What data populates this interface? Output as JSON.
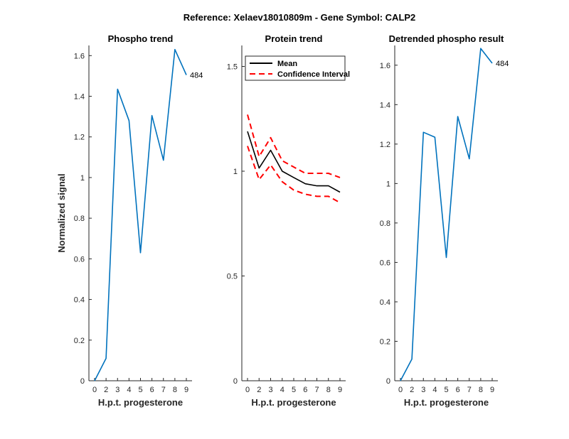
{
  "figure": {
    "title": "Reference:  Xelaev18010809m - Gene Symbol:  CALP2"
  },
  "chart_data": [
    {
      "type": "line",
      "title": "Phospho trend",
      "xlabel": "H.p.t. progesterone",
      "ylabel": "Normalized signal",
      "x_ticks": [
        "0",
        "2",
        "3",
        "4",
        "5",
        "6",
        "7",
        "8",
        "9"
      ],
      "ylim": [
        0,
        1.65
      ],
      "y_ticks": [
        0,
        0.2,
        0.4,
        0.6,
        0.8,
        1,
        1.2,
        1.4,
        1.6
      ],
      "y_tick_labels": [
        "0",
        "0.2",
        "0.4",
        "0.6",
        "0.8",
        "1",
        "1.2",
        "1.4",
        "1.6"
      ],
      "series": [
        {
          "color": "#0072BD",
          "style": "solid",
          "values": [
            0.0,
            0.11,
            1.435,
            1.28,
            0.63,
            1.305,
            1.085,
            1.63,
            1.505
          ],
          "end_label": "484"
        }
      ],
      "grid": false
    },
    {
      "type": "line",
      "title": "Protein trend",
      "xlabel": "H.p.t. progesterone",
      "ylabel": "",
      "x_ticks": [
        "0",
        "2",
        "3",
        "4",
        "5",
        "6",
        "7",
        "8",
        "9"
      ],
      "ylim": [
        0,
        1.6
      ],
      "y_ticks": [
        0,
        0.5,
        1,
        1.5
      ],
      "y_tick_labels": [
        "0",
        "0.5",
        "1",
        "1.5"
      ],
      "legend": {
        "placement": "top-left",
        "entries": [
          "Mean",
          "Confidence Interval"
        ]
      },
      "series": [
        {
          "name": "Mean",
          "color": "#000000",
          "style": "solid",
          "values": [
            1.19,
            1.015,
            1.1,
            1.0,
            0.97,
            0.94,
            0.93,
            0.93,
            0.9
          ]
        },
        {
          "name": "Confidence Interval",
          "color": "#FF0000",
          "style": "dashed",
          "values": [
            1.27,
            1.07,
            1.16,
            1.05,
            1.02,
            0.99,
            0.99,
            0.99,
            0.97
          ]
        },
        {
          "name": "Confidence Interval",
          "color": "#FF0000",
          "style": "dashed",
          "values": [
            1.12,
            0.96,
            1.03,
            0.95,
            0.91,
            0.89,
            0.88,
            0.88,
            0.85
          ]
        }
      ],
      "grid": false
    },
    {
      "type": "line",
      "title": "Detrended phospho result",
      "xlabel": "H.p.t. progesterone",
      "ylabel": "",
      "x_ticks": [
        "0",
        "2",
        "3",
        "4",
        "5",
        "6",
        "7",
        "8",
        "9"
      ],
      "ylim": [
        0,
        1.7
      ],
      "y_ticks": [
        0,
        0.2,
        0.4,
        0.6,
        0.8,
        1,
        1.2,
        1.4,
        1.6
      ],
      "y_tick_labels": [
        "0",
        "0.2",
        "0.4",
        "0.6",
        "0.8",
        "1",
        "1.2",
        "1.4",
        "1.6"
      ],
      "series": [
        {
          "color": "#0072BD",
          "style": "solid",
          "values": [
            0.0,
            0.11,
            1.26,
            1.235,
            0.625,
            1.34,
            1.125,
            1.685,
            1.61
          ],
          "end_label": "484"
        }
      ],
      "grid": false
    }
  ]
}
